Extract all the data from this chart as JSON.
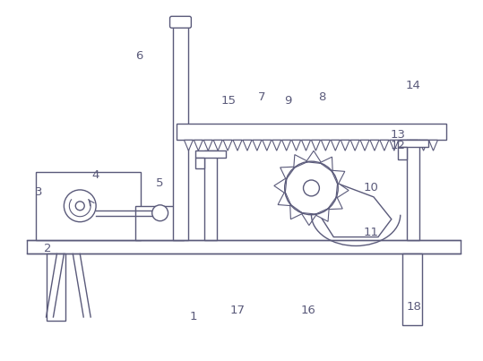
{
  "background_color": "#ffffff",
  "line_color": "#5a5a7a",
  "label_color": "#5a5a7a",
  "label_fontsize": 9.5,
  "fig_w": 5.39,
  "fig_h": 4.03,
  "dpi": 100
}
